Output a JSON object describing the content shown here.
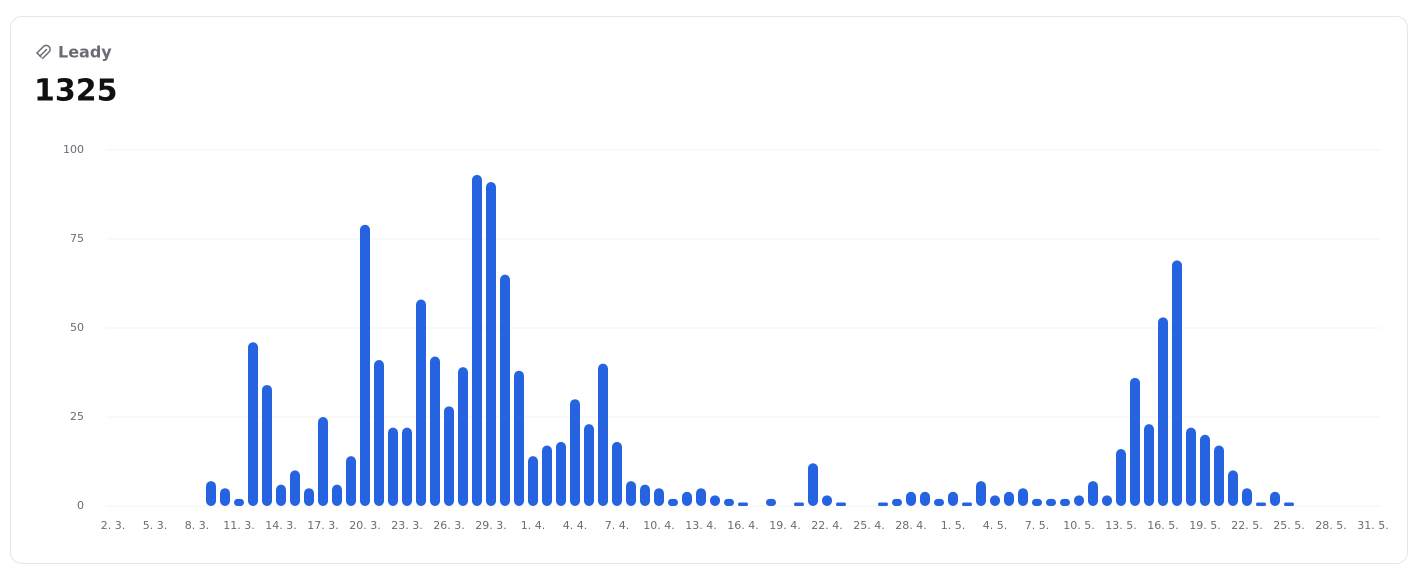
{
  "chart_data": {
    "type": "bar",
    "title": "Leady",
    "total": 1325,
    "color": "#2563e0",
    "categories": [
      "2. 3.",
      null,
      null,
      "5. 3.",
      null,
      null,
      "8. 3.",
      null,
      null,
      "11. 3.",
      null,
      null,
      "14. 3.",
      null,
      null,
      "17. 3.",
      null,
      null,
      "20. 3.",
      null,
      null,
      "23. 3.",
      null,
      null,
      "26. 3.",
      null,
      null,
      "29. 3.",
      null,
      null,
      "1. 4.",
      null,
      null,
      "4. 4.",
      null,
      null,
      "7. 4.",
      null,
      null,
      "10. 4.",
      null,
      null,
      "13. 4.",
      null,
      null,
      "16. 4.",
      null,
      null,
      "19. 4.",
      null,
      null,
      "22. 4.",
      null,
      null,
      "25. 4.",
      null,
      null,
      "28. 4.",
      null,
      null,
      "1. 5.",
      null,
      null,
      "4. 5.",
      null,
      null,
      "7. 5.",
      null,
      null,
      "10. 5.",
      null,
      null,
      "13. 5.",
      null,
      null,
      "16. 5.",
      null,
      null,
      "19. 5.",
      null,
      null,
      "22. 5.",
      null,
      null,
      "25. 5.",
      null,
      null,
      "28. 5.",
      null,
      null,
      "31. 5."
    ],
    "values": [
      0,
      0,
      0,
      0,
      0,
      0,
      0,
      7,
      5,
      2,
      46,
      34,
      6,
      10,
      5,
      25,
      6,
      14,
      79,
      41,
      22,
      22,
      58,
      42,
      28,
      39,
      93,
      91,
      65,
      38,
      14,
      17,
      18,
      30,
      23,
      40,
      18,
      7,
      6,
      5,
      2,
      4,
      5,
      3,
      2,
      1,
      0,
      2,
      0,
      1,
      12,
      3,
      1,
      0,
      0,
      1,
      2,
      4,
      4,
      2,
      4,
      1,
      7,
      3,
      4,
      5,
      2,
      2,
      2,
      3,
      7,
      3,
      16,
      36,
      23,
      53,
      69,
      22,
      20,
      17,
      10,
      5,
      1,
      4,
      1,
      0,
      0,
      0,
      0,
      0,
      0
    ],
    "ylim": [
      0,
      100
    ],
    "yticks": [
      0,
      25,
      50,
      75,
      100
    ],
    "grid": true
  }
}
